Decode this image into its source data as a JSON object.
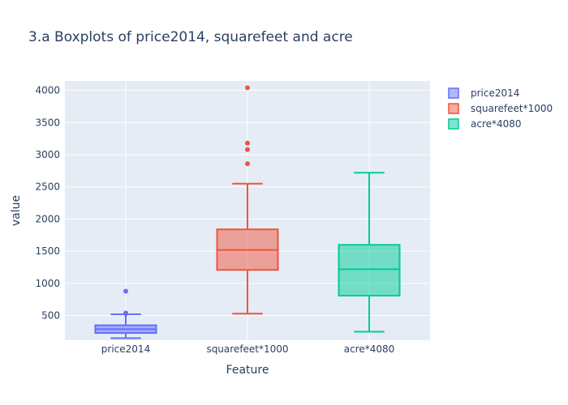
{
  "chart_data": {
    "type": "box",
    "title": "3.a Boxplots of price2014, squarefeet and acre",
    "xlabel": "Feature",
    "ylabel": "value",
    "categories": [
      "price2014",
      "squarefeet*1000",
      "acre*4080"
    ],
    "yticks": [
      500,
      1000,
      1500,
      2000,
      2500,
      3000,
      3500,
      4000
    ],
    "ylim": [
      118,
      4145
    ],
    "grid": true,
    "legend_position": "top-right",
    "series": [
      {
        "name": "price2014",
        "color": "#636efa",
        "min": 150,
        "q1": 230,
        "median": 290,
        "q3": 350,
        "max": 520,
        "outliers": [
          540,
          530,
          880
        ]
      },
      {
        "name": "squarefeet*1000",
        "color": "#ef553b",
        "min": 530,
        "q1": 1210,
        "median": 1520,
        "q3": 1840,
        "max": 2550,
        "outliers": [
          2860,
          3080,
          3180,
          4040
        ]
      },
      {
        "name": "acre*4080",
        "color": "#00cc96",
        "min": 250,
        "q1": 810,
        "median": 1220,
        "q3": 1600,
        "max": 2720,
        "outliers": []
      }
    ]
  }
}
